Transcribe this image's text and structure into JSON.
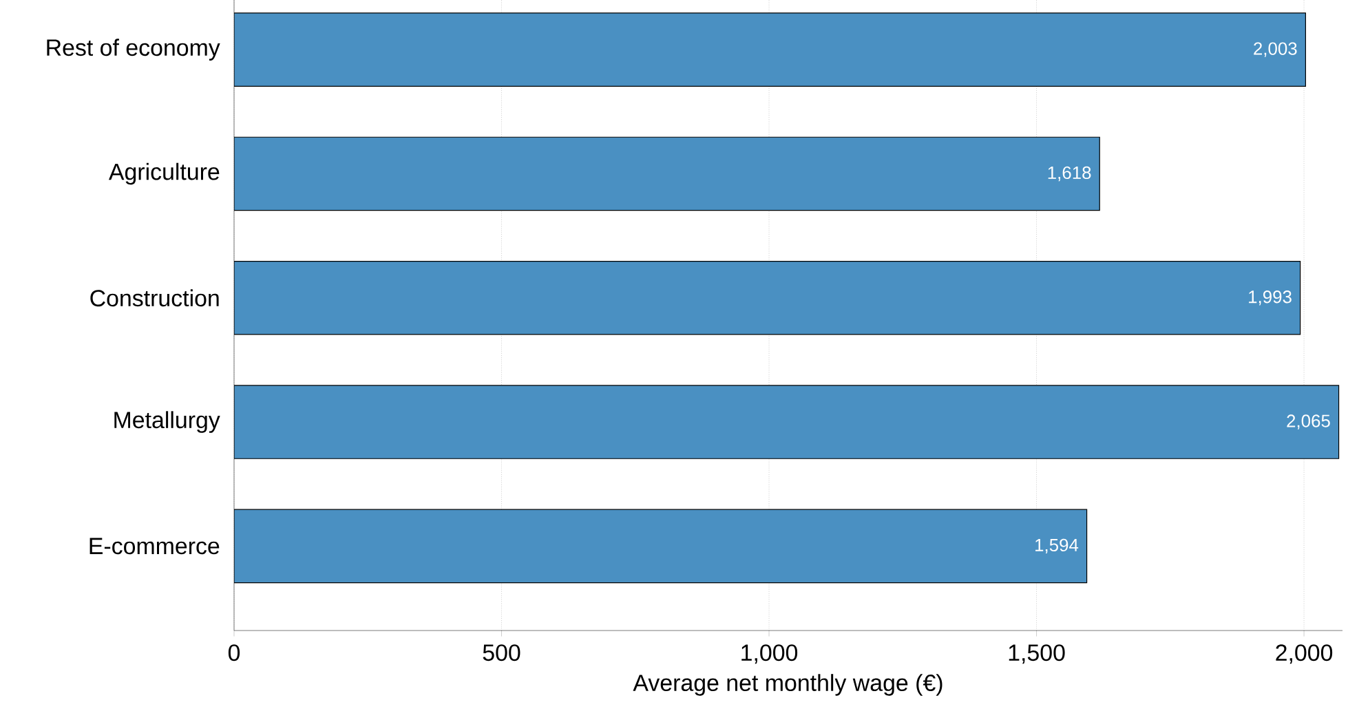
{
  "chart_data": {
    "type": "bar",
    "orientation": "horizontal",
    "xlabel": "Average net monthly wage (€)",
    "categories": [
      "Rest of economy",
      "Agriculture",
      "Construction",
      "Metallurgy",
      "E-commerce"
    ],
    "values": [
      2003,
      1618,
      1993,
      2065,
      1594
    ],
    "value_labels": [
      "2,003",
      "1,618",
      "1,993",
      "2,065",
      "1,594"
    ],
    "color": "#4a90c2",
    "xlim": [
      0,
      2072
    ],
    "xticks": [
      0,
      {
        "value": 500,
        "label": "500"
      },
      {
        "value": 1000,
        "label": "1,000"
      },
      {
        "value": 1500,
        "label": "1,500"
      },
      {
        "value": 2000,
        "label": "2,000"
      }
    ],
    "grid": "x"
  }
}
